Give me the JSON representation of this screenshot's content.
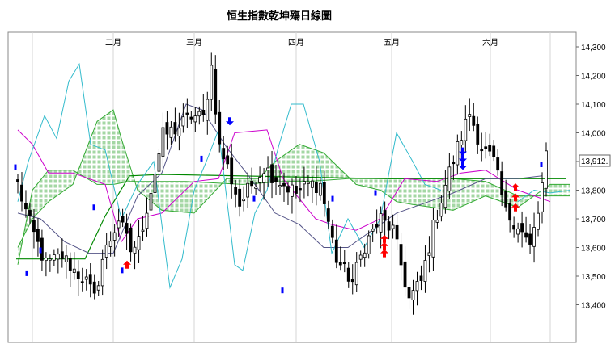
{
  "chart_data": {
    "type": "candlestick",
    "title": "恒生指數乾坤殤日線圖",
    "x_ticks": [
      "二月",
      "三月",
      "四月",
      "五月",
      "六月"
    ],
    "y_ticks": [
      "14,300",
      "14,200",
      "14,100",
      "14,000",
      "13,900",
      "13,800",
      "13,700",
      "13,600",
      "13,500",
      "13,400"
    ],
    "ylim": [
      13320,
      14350
    ],
    "last_value_label": "13,912.",
    "grid": "vertical",
    "colors": {
      "candle_up": "#ffffff",
      "candle_down": "#000000",
      "cloud_fill": "#9fd59f",
      "cloud_edge": "#33aa33",
      "conversion_line": "#cc00cc",
      "base_line": "#555588",
      "lagging_line": "#33bbcc",
      "flat_line": "#008800",
      "arrow_up": "#ff0000",
      "arrow_down": "#0000ff"
    }
  }
}
